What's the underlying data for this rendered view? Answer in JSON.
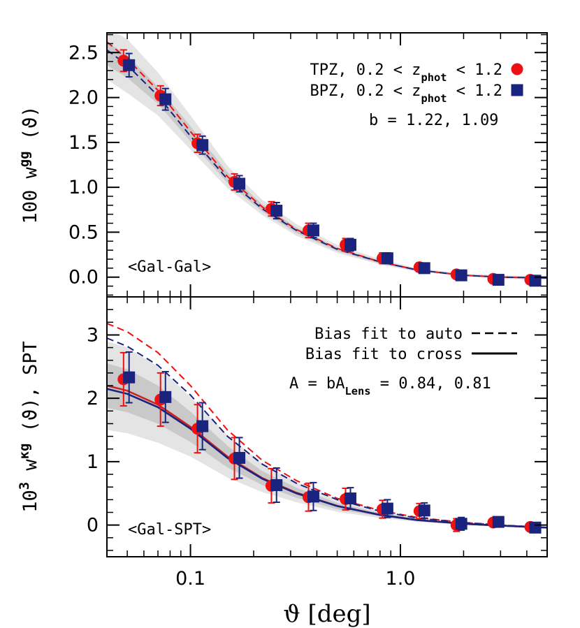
{
  "chart_data": [
    {
      "type": "scatter",
      "panel": "top",
      "xscale": "log",
      "xlim": [
        0.04,
        5.0
      ],
      "ylim": [
        -0.22,
        2.72
      ],
      "yticks": [
        0.0,
        0.5,
        1.0,
        1.5,
        2.0,
        2.5
      ],
      "ytick_labels": [
        "0.0",
        "0.5",
        "1.0",
        "1.5",
        "2.0",
        "2.5"
      ],
      "ylabel": {
        "prefix": "100 w",
        "sup": "gg",
        "suffix": " (ϑ)"
      },
      "region_label": "<Gal-Gal>",
      "series": [
        {
          "name": "TPZ, 0.2 < z_phot < 1.2",
          "legend": {
            "pre": "TPZ, 0.2 < z",
            "sub": "phot",
            "post": " < 1.2"
          },
          "marker": "circle",
          "color": "#ee1111",
          "x": [
            0.048,
            0.072,
            0.108,
            0.162,
            0.243,
            0.365,
            0.548,
            0.822,
            1.233,
            1.85,
            2.77,
            4.16
          ],
          "y": [
            2.41,
            2.02,
            1.49,
            1.06,
            0.76,
            0.52,
            0.36,
            0.21,
            0.11,
            0.03,
            -0.02,
            -0.03
          ],
          "err": [
            0.12,
            0.11,
            0.1,
            0.09,
            0.08,
            0.08,
            0.07,
            0.06,
            0.05,
            0.04,
            0.03,
            0.03
          ]
        },
        {
          "name": "BPZ, 0.2 < z_phot < 1.2",
          "legend": {
            "pre": "BPZ, 0.2 < z",
            "sub": "phot",
            "post": " < 1.2"
          },
          "marker": "square",
          "color": "#1a237e",
          "x": [
            0.051,
            0.076,
            0.114,
            0.171,
            0.257,
            0.385,
            0.578,
            0.867,
            1.3,
            1.95,
            2.93,
            4.39
          ],
          "y": [
            2.36,
            1.98,
            1.47,
            1.04,
            0.74,
            0.52,
            0.36,
            0.21,
            0.1,
            0.02,
            -0.03,
            -0.04
          ],
          "err": [
            0.13,
            0.12,
            0.1,
            0.09,
            0.09,
            0.08,
            0.07,
            0.06,
            0.05,
            0.04,
            0.03,
            0.03
          ]
        }
      ],
      "model_lines": [
        {
          "style": "dashed",
          "color": "#ee1111",
          "x": [
            0.04,
            0.05,
            0.07,
            0.1,
            0.15,
            0.22,
            0.32,
            0.5,
            0.8,
            1.2,
            2.0,
            3.0,
            5.0
          ],
          "y": [
            2.62,
            2.43,
            2.08,
            1.62,
            1.12,
            0.78,
            0.53,
            0.32,
            0.17,
            0.08,
            0.02,
            0.0,
            -0.01
          ]
        },
        {
          "style": "dashed",
          "color": "#1a237e",
          "x": [
            0.04,
            0.05,
            0.07,
            0.1,
            0.15,
            0.22,
            0.32,
            0.5,
            0.8,
            1.2,
            2.0,
            3.0,
            5.0
          ],
          "y": [
            2.53,
            2.36,
            2.02,
            1.57,
            1.09,
            0.76,
            0.52,
            0.31,
            0.17,
            0.08,
            0.02,
            0.0,
            -0.01
          ]
        }
      ],
      "bands": [
        {
          "color": "#e4e4e4",
          "x": [
            0.04,
            0.05,
            0.07,
            0.1,
            0.15,
            0.22,
            0.32,
            0.5,
            0.8,
            1.2,
            2.0,
            3.0,
            5.0
          ],
          "lo": [
            2.2,
            2.05,
            1.8,
            1.42,
            0.99,
            0.69,
            0.46,
            0.27,
            0.14,
            0.06,
            0.01,
            -0.02,
            -0.03
          ],
          "hi": [
            2.78,
            2.65,
            2.28,
            1.8,
            1.24,
            0.86,
            0.59,
            0.36,
            0.2,
            0.1,
            0.04,
            0.02,
            0.01
          ]
        },
        {
          "color": "#c9c9c9",
          "x": [
            0.04,
            0.05,
            0.07,
            0.1,
            0.15,
            0.22,
            0.32,
            0.5,
            0.8,
            1.2,
            2.0,
            3.0,
            5.0
          ],
          "lo": [
            2.36,
            2.22,
            1.93,
            1.51,
            1.05,
            0.73,
            0.49,
            0.29,
            0.15,
            0.07,
            0.015,
            -0.01,
            -0.02
          ],
          "hi": [
            2.62,
            2.47,
            2.12,
            1.68,
            1.17,
            0.81,
            0.55,
            0.33,
            0.18,
            0.09,
            0.03,
            0.01,
            0.0
          ]
        }
      ],
      "annotations": [
        "b = 1.22, 1.09"
      ]
    },
    {
      "type": "scatter",
      "panel": "bottom",
      "xscale": "log",
      "xlim": [
        0.04,
        5.0
      ],
      "ylim": [
        -0.5,
        3.6
      ],
      "yticks": [
        0,
        1,
        2,
        3
      ],
      "ytick_labels": [
        "0",
        "1",
        "2",
        "3"
      ],
      "xticks": [
        0.1,
        1.0
      ],
      "xtick_labels": [
        "0.1",
        "1.0"
      ],
      "xlabel": "ϑ  [deg]",
      "ylabel": {
        "prefix": "10",
        "sup1": "3",
        "mid": " w",
        "sup2": "κg",
        "suffix": " (ϑ), SPT"
      },
      "region_label": "<Gal-SPT>",
      "legend": [
        {
          "label": "Bias fit to auto",
          "style": "dashed"
        },
        {
          "label": "Bias fit to cross",
          "style": "solid"
        }
      ],
      "annotation": {
        "pre": "A = bA",
        "sub": "Lens",
        "post": " = 0.84, 0.81"
      },
      "series": [
        {
          "name": "TPZ, 0.2 < z_phot < 1.2",
          "marker": "circle",
          "color": "#ee1111",
          "x": [
            0.048,
            0.072,
            0.108,
            0.162,
            0.243,
            0.365,
            0.548,
            0.822,
            1.233,
            1.85,
            2.77,
            4.16
          ],
          "y": [
            2.3,
            1.98,
            1.52,
            1.05,
            0.62,
            0.44,
            0.41,
            0.25,
            0.22,
            0.0,
            0.04,
            -0.03
          ],
          "err": [
            0.42,
            0.42,
            0.38,
            0.33,
            0.27,
            0.22,
            0.17,
            0.14,
            0.12,
            0.1,
            0.06,
            0.04
          ]
        },
        {
          "name": "BPZ, 0.2 < z_phot < 1.2",
          "marker": "square",
          "color": "#1a237e",
          "x": [
            0.051,
            0.076,
            0.114,
            0.171,
            0.257,
            0.385,
            0.578,
            0.867,
            1.3,
            1.95,
            2.93,
            4.39
          ],
          "y": [
            2.33,
            2.02,
            1.56,
            1.06,
            0.63,
            0.45,
            0.42,
            0.26,
            0.23,
            0.02,
            0.05,
            -0.04
          ],
          "err": [
            0.4,
            0.4,
            0.37,
            0.32,
            0.27,
            0.22,
            0.17,
            0.14,
            0.12,
            0.1,
            0.06,
            0.04
          ]
        }
      ],
      "model_lines": [
        {
          "style": "dashed",
          "color": "#ee1111",
          "x": [
            0.04,
            0.05,
            0.07,
            0.1,
            0.15,
            0.22,
            0.32,
            0.5,
            0.8,
            1.2,
            2.0,
            3.0,
            5.0
          ],
          "y": [
            3.18,
            3.05,
            2.72,
            2.2,
            1.5,
            1.02,
            0.7,
            0.42,
            0.23,
            0.12,
            0.04,
            0.0,
            -0.04
          ]
        },
        {
          "style": "dashed",
          "color": "#1a237e",
          "x": [
            0.04,
            0.05,
            0.07,
            0.1,
            0.15,
            0.22,
            0.32,
            0.5,
            0.8,
            1.2,
            2.0,
            3.0,
            5.0
          ],
          "y": [
            2.95,
            2.82,
            2.52,
            2.05,
            1.4,
            0.96,
            0.66,
            0.4,
            0.22,
            0.11,
            0.04,
            0.0,
            -0.04
          ]
        },
        {
          "style": "solid",
          "color": "#cc2222",
          "x": [
            0.04,
            0.05,
            0.07,
            0.1,
            0.15,
            0.22,
            0.32,
            0.5,
            0.8,
            1.2,
            2.0,
            3.0,
            5.0
          ],
          "y": [
            2.2,
            2.12,
            1.9,
            1.55,
            1.08,
            0.74,
            0.51,
            0.3,
            0.16,
            0.08,
            0.02,
            -0.01,
            -0.04
          ]
        },
        {
          "style": "solid",
          "color": "#1a237e",
          "x": [
            0.04,
            0.05,
            0.07,
            0.1,
            0.15,
            0.22,
            0.32,
            0.5,
            0.8,
            1.2,
            2.0,
            3.0,
            5.0
          ],
          "y": [
            2.15,
            2.07,
            1.86,
            1.52,
            1.06,
            0.73,
            0.5,
            0.3,
            0.16,
            0.08,
            0.02,
            -0.01,
            -0.04
          ]
        }
      ],
      "bands": [
        {
          "color": "#e4e4e4",
          "x": [
            0.04,
            0.05,
            0.07,
            0.1,
            0.15,
            0.22,
            0.32,
            0.5,
            0.8,
            1.2,
            2.0,
            3.0,
            5.0
          ],
          "lo": [
            1.5,
            1.45,
            1.3,
            1.08,
            0.75,
            0.52,
            0.36,
            0.21,
            0.11,
            0.05,
            0.01,
            -0.02,
            -0.05
          ],
          "hi": [
            2.9,
            2.8,
            2.5,
            2.02,
            1.42,
            0.97,
            0.67,
            0.4,
            0.22,
            0.11,
            0.04,
            0.0,
            -0.03
          ]
        },
        {
          "color": "#c9c9c9",
          "x": [
            0.04,
            0.05,
            0.07,
            0.1,
            0.15,
            0.22,
            0.32,
            0.5,
            0.8,
            1.2,
            2.0,
            3.0,
            5.0
          ],
          "lo": [
            1.85,
            1.78,
            1.6,
            1.31,
            0.91,
            0.63,
            0.43,
            0.25,
            0.135,
            0.065,
            0.015,
            -0.015,
            -0.045
          ],
          "hi": [
            2.55,
            2.46,
            2.2,
            1.79,
            1.25,
            0.85,
            0.59,
            0.35,
            0.19,
            0.095,
            0.03,
            -0.005,
            -0.035
          ]
        }
      ]
    }
  ]
}
